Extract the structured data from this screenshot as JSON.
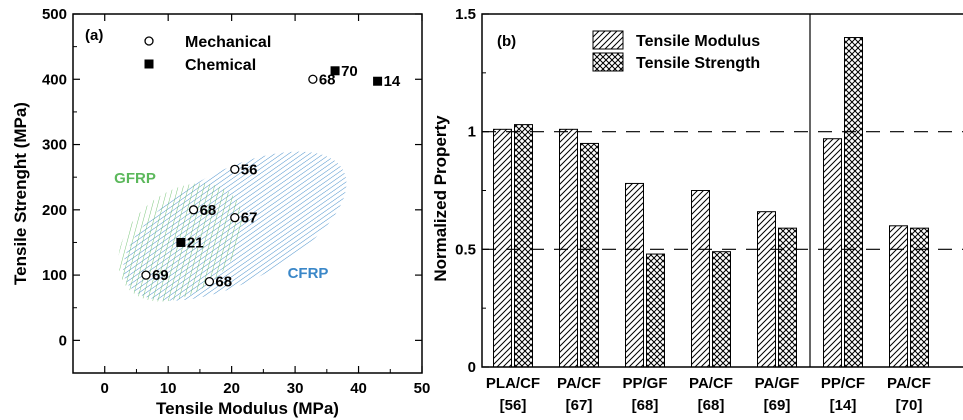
{
  "chart_data": [
    {
      "type": "scatter",
      "panel_label": "(a)",
      "xlabel": "Tensile Modulus (MPa)",
      "ylabel": "Tensile Strenght (MPa)",
      "xlim": [
        -5,
        50
      ],
      "ylim": [
        -50,
        500
      ],
      "xticks": [
        0,
        10,
        20,
        30,
        40,
        50
      ],
      "yticks": [
        0,
        100,
        200,
        300,
        400,
        500
      ],
      "legend": {
        "position": "top-left",
        "entries": [
          "Mechanical",
          "Chemical"
        ]
      },
      "series": [
        {
          "name": "Mechanical",
          "marker": "open-circle",
          "points": [
            {
              "x": 32.8,
              "y": 400,
              "label": "68"
            },
            {
              "x": 20.5,
              "y": 262,
              "label": "56"
            },
            {
              "x": 14.0,
              "y": 200,
              "label": "68"
            },
            {
              "x": 20.5,
              "y": 188,
              "label": "67"
            },
            {
              "x": 6.5,
              "y": 100,
              "label": "69"
            },
            {
              "x": 16.5,
              "y": 90,
              "label": "68"
            }
          ]
        },
        {
          "name": "Chemical",
          "marker": "filled-square",
          "points": [
            {
              "x": 36.3,
              "y": 413,
              "label": "70"
            },
            {
              "x": 43.0,
              "y": 397,
              "label": "14"
            },
            {
              "x": 12.0,
              "y": 150,
              "label": "21"
            }
          ]
        }
      ],
      "regions": [
        {
          "label": "GFRP",
          "color": "#5cb85c"
        },
        {
          "label": "CFRP",
          "color": "#3a87c8"
        }
      ]
    },
    {
      "type": "bar",
      "panel_label": "(b)",
      "xlabel": "",
      "ylabel": "Normalized  Property",
      "ylim": [
        0,
        1.5
      ],
      "yticks": [
        "0",
        "0.5",
        "1",
        "1.5"
      ],
      "reference_lines": [
        0.5,
        1
      ],
      "legend": {
        "position": "top-center",
        "entries": [
          "Tensile Modulus",
          "Tensile Strength"
        ]
      },
      "categories": [
        {
          "name": "PLA/CF",
          "ref": "[56]"
        },
        {
          "name": "PA/CF",
          "ref": "[67]"
        },
        {
          "name": "PP/GF",
          "ref": "[68]"
        },
        {
          "name": "PA/CF",
          "ref": "[68]"
        },
        {
          "name": "PA/GF",
          "ref": "[69]"
        },
        {
          "name": "PP/CF",
          "ref": "[14]"
        },
        {
          "name": "PA/CF",
          "ref": "[70]"
        }
      ],
      "series": [
        {
          "name": "Tensile Modulus",
          "pattern": "diagonal",
          "values": [
            1.01,
            1.01,
            0.78,
            0.75,
            0.66,
            0.97,
            0.6
          ]
        },
        {
          "name": "Tensile Strength",
          "pattern": "crosshatch",
          "values": [
            1.03,
            0.95,
            0.48,
            0.49,
            0.59,
            1.4,
            0.59
          ]
        }
      ],
      "divider_after_category_index": 4
    }
  ]
}
